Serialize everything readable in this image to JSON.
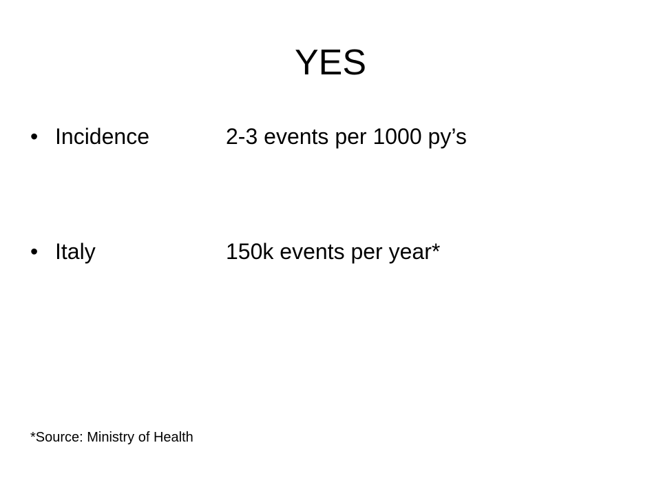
{
  "slide": {
    "title": "YES",
    "bullet_glyph": "•",
    "bullets": [
      {
        "label": "Incidence",
        "value": "2-3 events per 1000 py’s"
      },
      {
        "label": "Italy",
        "value": "150k events per year*"
      }
    ],
    "footnote": "*Source: Ministry of Health"
  }
}
